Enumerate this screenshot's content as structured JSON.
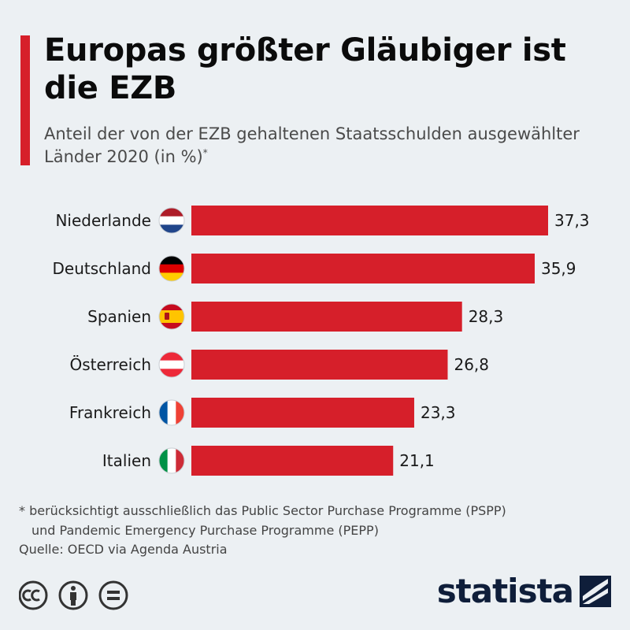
{
  "title": "Europas größter Gläubiger ist die EZB",
  "subtitle": "Anteil der von der EZB gehaltenen Staatsschulden ausgewählter Länder 2020 (in %)",
  "subtitle_marker": "*",
  "footnote_line1": "* berücksichtigt ausschließlich das Public Sector Purchase Programme (PSPP)",
  "footnote_line2": "und Pandemic Emergency Purchase Programme (PEPP)",
  "source": "Quelle: OECD via Agenda Austria",
  "logo": "statista",
  "colors": {
    "bar": "#d61f2a",
    "accent": "#d61f2a",
    "background": "#ecf0f3",
    "logo": "#0f1e3a"
  },
  "chart_data": {
    "type": "bar",
    "orientation": "horizontal",
    "categories": [
      "Niederlande",
      "Deutschland",
      "Spanien",
      "Österreich",
      "Frankreich",
      "Italien"
    ],
    "values": [
      37.3,
      35.9,
      28.3,
      26.8,
      23.3,
      21.1
    ],
    "value_labels": [
      "37,3",
      "35,9",
      "28,3",
      "26,8",
      "23,3",
      "21,1"
    ],
    "flags": [
      "nl",
      "de",
      "es",
      "at",
      "fr",
      "it"
    ],
    "xlim": [
      0,
      37.3
    ],
    "unit": "%"
  }
}
